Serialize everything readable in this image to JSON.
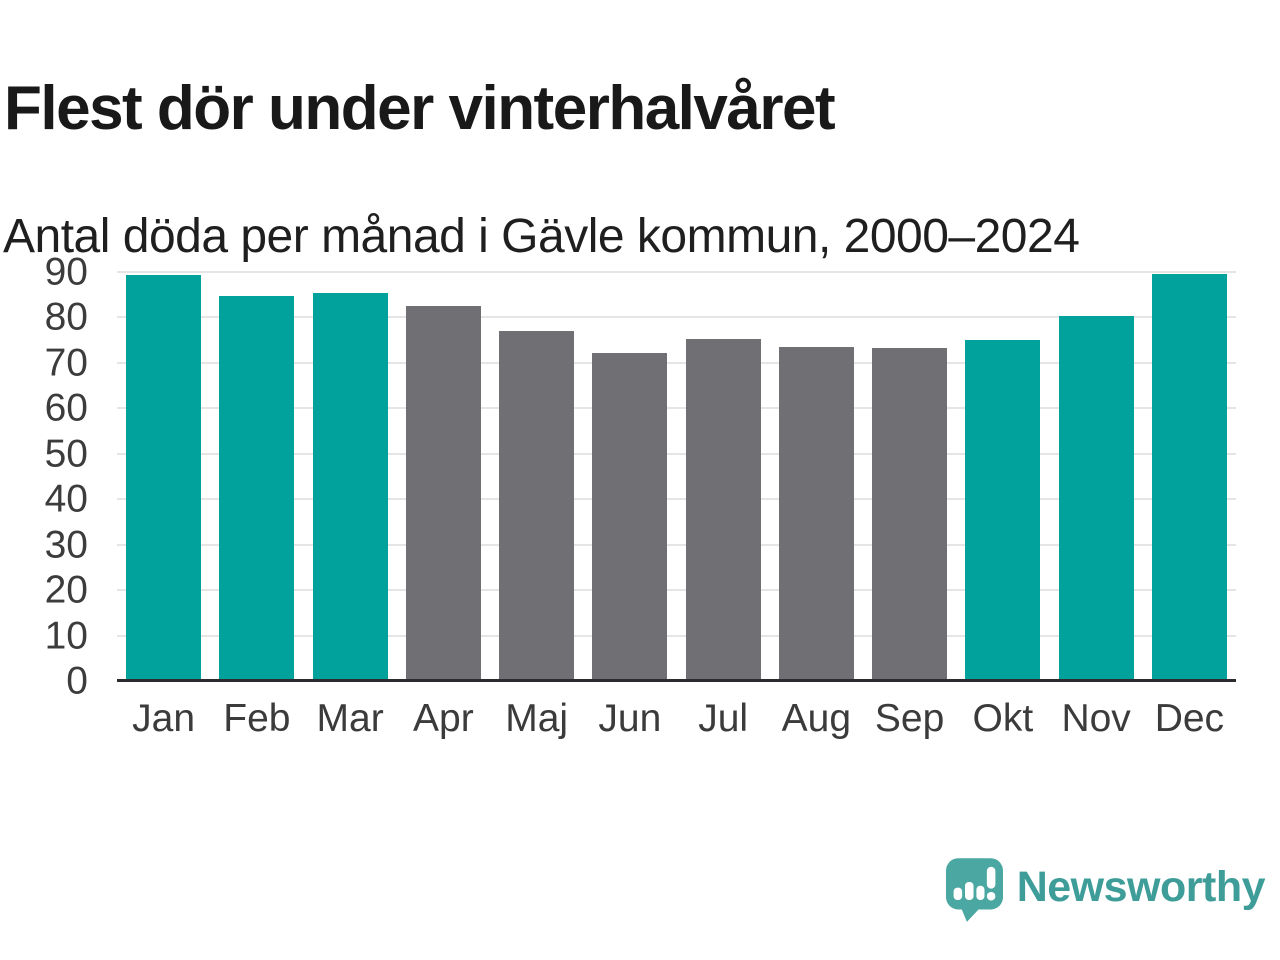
{
  "header": {
    "title": "Flest dör under vinterhalvåret",
    "subtitle": "Antal döda per månad i Gävle kommun, 2000–2024"
  },
  "chart_data": {
    "type": "bar",
    "title": "Flest dör under vinterhalvåret",
    "subtitle": "Antal döda per månad i Gävle kommun, 2000–2024",
    "categories": [
      "Jan",
      "Feb",
      "Mar",
      "Apr",
      "Maj",
      "Jun",
      "Jul",
      "Aug",
      "Sep",
      "Okt",
      "Nov",
      "Dec"
    ],
    "values": [
      89.4,
      84.8,
      85.3,
      82.6,
      77.1,
      72.1,
      75.3,
      73.5,
      73.3,
      75.0,
      80.3,
      89.5
    ],
    "bar_groups": [
      "winter",
      "winter",
      "winter",
      "summer",
      "summer",
      "summer",
      "summer",
      "summer",
      "summer",
      "winter",
      "winter",
      "winter"
    ],
    "series_colors": {
      "winter": "#00a29b",
      "summer": "#706f74"
    },
    "xlabel": "",
    "ylabel": "",
    "ylim": [
      0,
      90
    ],
    "yticks": [
      0,
      10,
      20,
      30,
      40,
      50,
      60,
      70,
      80,
      90
    ],
    "grid": "horizontal",
    "legend": "none",
    "gridline_color": "#e5e5e5",
    "axis_line_color": "#2c2b30",
    "tick_label_color": "#3b3b3b"
  },
  "footer": {
    "brand": "Newsworthy",
    "brand_color": "#3e9d98",
    "logo_icon_color": "#4aa7a1"
  }
}
